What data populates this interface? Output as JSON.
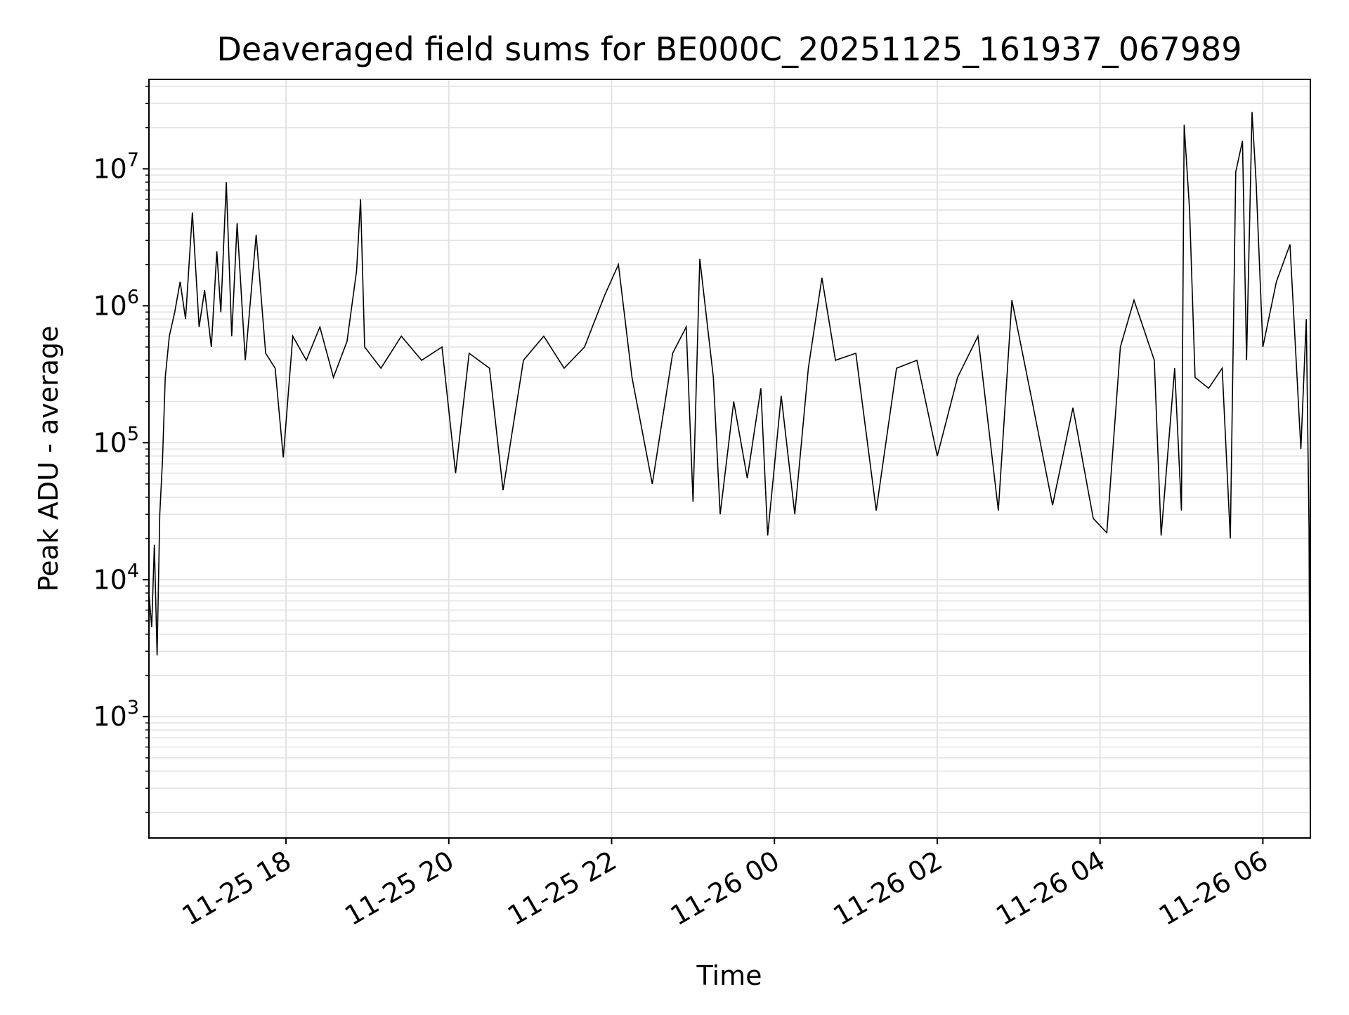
{
  "chart_data": {
    "type": "line",
    "title": "Deaveraged field sums for BE000C_20251125_161937_067989",
    "xlabel": "Time",
    "ylabel": "Peak ADU - average",
    "yscale": "log",
    "ylim": [
      130,
      45000000
    ],
    "xlim": [
      "2025-11-25 16:19",
      "2025-11-26 06:35"
    ],
    "grid": true,
    "line_color": "#000000",
    "grid_color": "#e3e3e3",
    "x_ticks": [
      {
        "t": "2025-11-25 18:00",
        "label": "11-25 18"
      },
      {
        "t": "2025-11-25 20:00",
        "label": "11-25 20"
      },
      {
        "t": "2025-11-25 22:00",
        "label": "11-25 22"
      },
      {
        "t": "2025-11-26 00:00",
        "label": "11-26 00"
      },
      {
        "t": "2025-11-26 02:00",
        "label": "11-26 02"
      },
      {
        "t": "2025-11-26 04:00",
        "label": "11-26 04"
      },
      {
        "t": "2025-11-26 06:00",
        "label": "11-26 06"
      }
    ],
    "y_ticks": [
      {
        "value": 1000,
        "base": "10",
        "exp": "3"
      },
      {
        "value": 10000,
        "base": "10",
        "exp": "4"
      },
      {
        "value": 100000,
        "base": "10",
        "exp": "5"
      },
      {
        "value": 1000000,
        "base": "10",
        "exp": "6"
      },
      {
        "value": 10000000,
        "base": "10",
        "exp": "7"
      }
    ],
    "series": [
      {
        "points": [
          [
            "2025-11-25 16:19",
            8000
          ],
          [
            "2025-11-25 16:21",
            4500
          ],
          [
            "2025-11-25 16:23",
            18000
          ],
          [
            "2025-11-25 16:25",
            2800
          ],
          [
            "2025-11-25 16:27",
            30000
          ],
          [
            "2025-11-25 16:29",
            75000
          ],
          [
            "2025-11-25 16:31",
            300000
          ],
          [
            "2025-11-25 16:34",
            600000
          ],
          [
            "2025-11-25 16:38",
            900000
          ],
          [
            "2025-11-25 16:42",
            1500000
          ],
          [
            "2025-11-25 16:46",
            800000
          ],
          [
            "2025-11-25 16:51",
            4800000
          ],
          [
            "2025-11-25 16:56",
            700000
          ],
          [
            "2025-11-25 17:00",
            1300000
          ],
          [
            "2025-11-25 17:05",
            500000
          ],
          [
            "2025-11-25 17:09",
            2500000
          ],
          [
            "2025-11-25 17:12",
            900000
          ],
          [
            "2025-11-25 17:16",
            8000000
          ],
          [
            "2025-11-25 17:20",
            600000
          ],
          [
            "2025-11-25 17:24",
            4000000
          ],
          [
            "2025-11-25 17:30",
            400000
          ],
          [
            "2025-11-25 17:38",
            3300000
          ],
          [
            "2025-11-25 17:45",
            450000
          ],
          [
            "2025-11-25 17:52",
            350000
          ],
          [
            "2025-11-25 17:58",
            78000
          ],
          [
            "2025-11-25 18:05",
            600000
          ],
          [
            "2025-11-25 18:15",
            400000
          ],
          [
            "2025-11-25 18:25",
            700000
          ],
          [
            "2025-11-25 18:35",
            300000
          ],
          [
            "2025-11-25 18:45",
            550000
          ],
          [
            "2025-11-25 18:52",
            1800000
          ],
          [
            "2025-11-25 18:55",
            6000000
          ],
          [
            "2025-11-25 18:58",
            500000
          ],
          [
            "2025-11-25 19:10",
            350000
          ],
          [
            "2025-11-25 19:25",
            600000
          ],
          [
            "2025-11-25 19:40",
            400000
          ],
          [
            "2025-11-25 19:55",
            500000
          ],
          [
            "2025-11-25 20:05",
            60000
          ],
          [
            "2025-11-25 20:15",
            450000
          ],
          [
            "2025-11-25 20:30",
            350000
          ],
          [
            "2025-11-25 20:40",
            45000
          ],
          [
            "2025-11-25 20:55",
            400000
          ],
          [
            "2025-11-25 21:10",
            600000
          ],
          [
            "2025-11-25 21:25",
            350000
          ],
          [
            "2025-11-25 21:40",
            500000
          ],
          [
            "2025-11-25 21:55",
            1200000
          ],
          [
            "2025-11-25 22:05",
            2000000
          ],
          [
            "2025-11-25 22:15",
            300000
          ],
          [
            "2025-11-25 22:30",
            50000
          ],
          [
            "2025-11-25 22:45",
            450000
          ],
          [
            "2025-11-25 22:55",
            700000
          ],
          [
            "2025-11-25 23:00",
            37000
          ],
          [
            "2025-11-25 23:05",
            2200000
          ],
          [
            "2025-11-25 23:15",
            300000
          ],
          [
            "2025-11-25 23:20",
            30000
          ],
          [
            "2025-11-25 23:30",
            200000
          ],
          [
            "2025-11-25 23:40",
            55000
          ],
          [
            "2025-11-25 23:50",
            250000
          ],
          [
            "2025-11-25 23:55",
            21000
          ],
          [
            "2025-11-26 00:05",
            220000
          ],
          [
            "2025-11-26 00:15",
            30000
          ],
          [
            "2025-11-26 00:25",
            350000
          ],
          [
            "2025-11-26 00:35",
            1600000
          ],
          [
            "2025-11-26 00:45",
            400000
          ],
          [
            "2025-11-26 01:00",
            450000
          ],
          [
            "2025-11-26 01:15",
            32000
          ],
          [
            "2025-11-26 01:30",
            350000
          ],
          [
            "2025-11-26 01:45",
            400000
          ],
          [
            "2025-11-26 02:00",
            80000
          ],
          [
            "2025-11-26 02:15",
            300000
          ],
          [
            "2025-11-26 02:30",
            600000
          ],
          [
            "2025-11-26 02:45",
            32000
          ],
          [
            "2025-11-26 02:55",
            1100000
          ],
          [
            "2025-11-26 03:10",
            200000
          ],
          [
            "2025-11-26 03:25",
            35000
          ],
          [
            "2025-11-26 03:40",
            180000
          ],
          [
            "2025-11-26 03:55",
            28000
          ],
          [
            "2025-11-26 04:05",
            22000
          ],
          [
            "2025-11-26 04:15",
            500000
          ],
          [
            "2025-11-26 04:25",
            1100000
          ],
          [
            "2025-11-26 04:40",
            400000
          ],
          [
            "2025-11-26 04:45",
            21000
          ],
          [
            "2025-11-26 04:55",
            350000
          ],
          [
            "2025-11-26 05:00",
            32000
          ],
          [
            "2025-11-26 05:02",
            21000000
          ],
          [
            "2025-11-26 05:06",
            5000000
          ],
          [
            "2025-11-26 05:10",
            300000
          ],
          [
            "2025-11-26 05:20",
            250000
          ],
          [
            "2025-11-26 05:30",
            350000
          ],
          [
            "2025-11-26 05:36",
            20000
          ],
          [
            "2025-11-26 05:40",
            9500000
          ],
          [
            "2025-11-26 05:45",
            16000000
          ],
          [
            "2025-11-26 05:48",
            400000
          ],
          [
            "2025-11-26 05:52",
            26000000
          ],
          [
            "2025-11-26 05:55",
            8000000
          ],
          [
            "2025-11-26 06:00",
            500000
          ],
          [
            "2025-11-26 06:10",
            1500000
          ],
          [
            "2025-11-26 06:20",
            2800000
          ],
          [
            "2025-11-26 06:28",
            90000
          ],
          [
            "2025-11-26 06:32",
            800000
          ],
          [
            "2025-11-26 06:34",
            24000
          ],
          [
            "2025-11-26 06:35",
            130
          ]
        ]
      }
    ]
  }
}
